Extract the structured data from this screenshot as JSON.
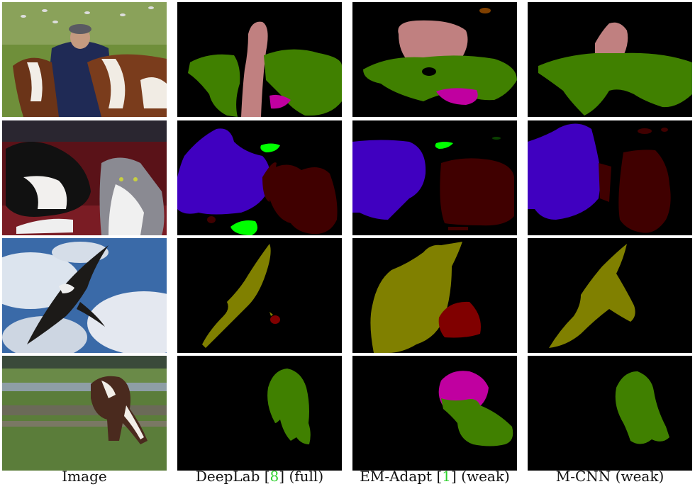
{
  "captions": {
    "image": "Image",
    "deeplab": {
      "name": "DeepLab [",
      "ref": "8",
      "tail": "] (full)"
    },
    "emadapt": {
      "name": "EM-Adapt [",
      "ref": "1",
      "tail": "] (weak)"
    },
    "mcnn": "M-CNN (weak)"
  },
  "colors": {
    "background": "#000000",
    "person": "#c08080",
    "cow": "#408000",
    "dog": "#4000c0",
    "cat": "#400000",
    "bird": "#808000",
    "sheep": "#c000a0",
    "plant": "#00ff00",
    "extra": "#804000"
  }
}
